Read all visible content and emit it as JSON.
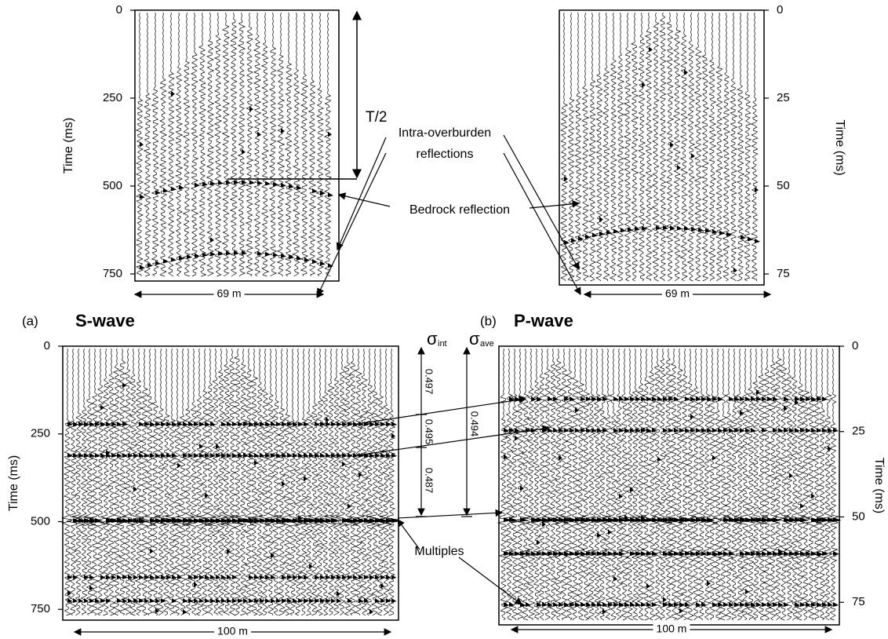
{
  "panels": [
    {
      "axis_label": "Time (ms)",
      "ticks": [
        0,
        250,
        500,
        750
      ],
      "width_label": "69 m"
    },
    {
      "axis_label": "Time (ms)",
      "ticks": [
        0,
        25,
        50,
        75
      ],
      "width_label": "69 m"
    },
    {
      "axis_label": "Time (ms)",
      "ticks": [
        0,
        250,
        500,
        750
      ],
      "width_label": "100 m"
    },
    {
      "axis_label": "Time (ms)",
      "ticks": [
        0,
        25,
        50,
        75
      ],
      "width_label": "100 m"
    }
  ],
  "captions": [
    {
      "letter": "(a)",
      "title": "S-wave"
    },
    {
      "letter": "(b)",
      "title": "P-wave"
    }
  ],
  "annotations": {
    "t_half": "T/2",
    "intra": [
      "Intra-overburden",
      "reflections"
    ],
    "bedrock": "Bedrock reflection",
    "multiples": "Multiples"
  },
  "sigma": {
    "int": {
      "symbol": "σ",
      "sub": "int",
      "values": [
        0.497,
        0.495,
        0.487
      ]
    },
    "ave": {
      "symbol": "σ",
      "sub": "ave",
      "values": [
        0.494
      ]
    }
  }
}
